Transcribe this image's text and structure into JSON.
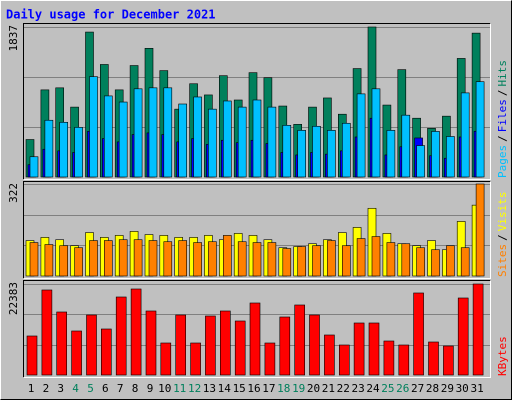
{
  "title": "Daily usage for December 2021",
  "separator": "/",
  "highlight": {
    "color": "#00805c",
    "indices": [
      3,
      4,
      10,
      11,
      17,
      18,
      24,
      25
    ]
  },
  "chart_data": [
    {
      "type": "bar",
      "ylim": [
        0,
        1837
      ],
      "yticks": [
        1837
      ],
      "series": [
        {
          "name": "Hits",
          "color": "#00805c",
          "values": [
            459,
            1067,
            1092,
            856,
            1775,
            1378,
            1067,
            1365,
            1576,
            1303,
            831,
            1142,
            1005,
            1241,
            943,
            1278,
            1216,
            869,
            645,
            856,
            968,
            769,
            1328,
            1837,
            881,
            1315,
            720,
            596,
            745,
            1452,
            1762
          ]
        },
        {
          "name": "Files",
          "color": "#0000ff",
          "values": [
            150,
            340,
            320,
            300,
            560,
            470,
            430,
            520,
            540,
            520,
            430,
            470,
            400,
            450,
            420,
            450,
            410,
            300,
            270,
            300,
            280,
            320,
            490,
            720,
            270,
            370,
            478,
            260,
            230,
            490,
            560
          ]
        },
        {
          "name": "Pages",
          "color": "#00c0ff",
          "values": [
            248,
            695,
            670,
            608,
            1229,
            993,
            918,
            1080,
            1092,
            1092,
            894,
            980,
            831,
            931,
            856,
            943,
            856,
            633,
            571,
            621,
            571,
            658,
            1018,
            1080,
            571,
            757,
            385,
            558,
            496,
            1030,
            1167
          ]
        }
      ]
    },
    {
      "type": "bar",
      "ylim": [
        0,
        322
      ],
      "yticks": [
        322
      ],
      "series": [
        {
          "name": "Visits",
          "color": "#ffff00",
          "values": [
            124,
            135,
            127,
            106,
            152,
            135,
            142,
            156,
            145,
            142,
            135,
            135,
            142,
            127,
            149,
            142,
            127,
            99,
            103,
            113,
            127,
            152,
            170,
            237,
            149,
            113,
            106,
            124,
            92,
            191,
            248
          ]
        },
        {
          "name": "Sites",
          "color": "#ff8000",
          "values": [
            117,
            110,
            106,
            99,
            124,
            124,
            127,
            127,
            124,
            120,
            124,
            117,
            120,
            142,
            120,
            117,
            117,
            96,
            103,
            106,
            124,
            106,
            131,
            138,
            117,
            113,
            99,
            92,
            106,
            99,
            322
          ]
        }
      ]
    },
    {
      "type": "bar",
      "ylim": [
        0,
        22383
      ],
      "yticks": [
        22383
      ],
      "categories": [
        "1",
        "2",
        "3",
        "4",
        "5",
        "6",
        "7",
        "8",
        "9",
        "10",
        "11",
        "12",
        "13",
        "14",
        "15",
        "16",
        "17",
        "18",
        "19",
        "20",
        "21",
        "22",
        "23",
        "24",
        "25",
        "26",
        "27",
        "28",
        "29",
        "30",
        "31"
      ],
      "series": [
        {
          "name": "KBytes",
          "color": "#ff0000",
          "values": [
            9594,
            20910,
            15498,
            10824,
            14760,
            11316,
            19188,
            21156,
            15744,
            7872,
            14760,
            7872,
            14514,
            15744,
            13284,
            17712,
            7872,
            14268,
            17220,
            14760,
            9840,
            7380,
            12792,
            12792,
            8364,
            7380,
            20172,
            8118,
            7134,
            18942,
            22383
          ]
        }
      ]
    }
  ]
}
